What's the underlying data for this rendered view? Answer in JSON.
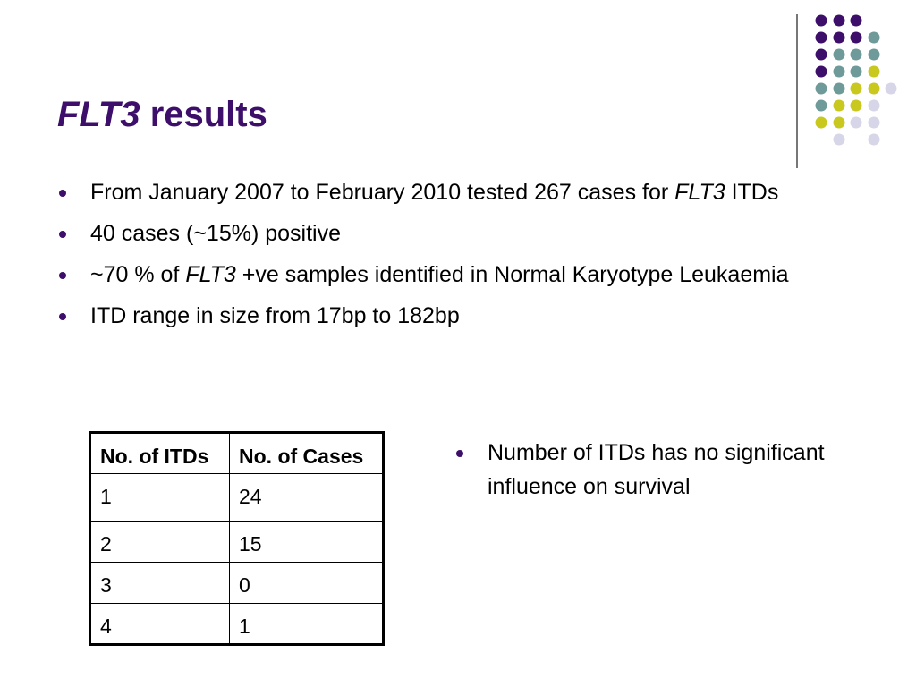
{
  "slide": {
    "title_italic": "FLT3",
    "title_rest": " results",
    "bullets": [
      {
        "parts": [
          "From January 2007 to February 2010 tested 267 cases for ",
          "FLT3",
          " ITDs"
        ]
      },
      {
        "parts": [
          "40 cases (~15%) positive"
        ]
      },
      {
        "parts": [
          "~70 % of ",
          "FLT3",
          " +ve samples identified in Normal Karyotype Leukaemia"
        ]
      },
      {
        "parts": [
          "ITD range in size from 17bp to 182bp"
        ]
      }
    ],
    "table": {
      "headers": [
        "No. of ITDs",
        "No. of Cases"
      ],
      "rows": [
        [
          "1",
          "24"
        ],
        [
          "2",
          "15"
        ],
        [
          "3",
          "0"
        ],
        [
          "4",
          "1"
        ]
      ]
    },
    "note": "Number of ITDs has no significant influence on survival"
  },
  "colors": {
    "title": "#3d0f6b",
    "dot_purple": "#3d0f6b",
    "dot_teal": "#6f9a9a",
    "dot_yellow": "#c8c81e",
    "dot_lavender": "#d6d6e8"
  }
}
